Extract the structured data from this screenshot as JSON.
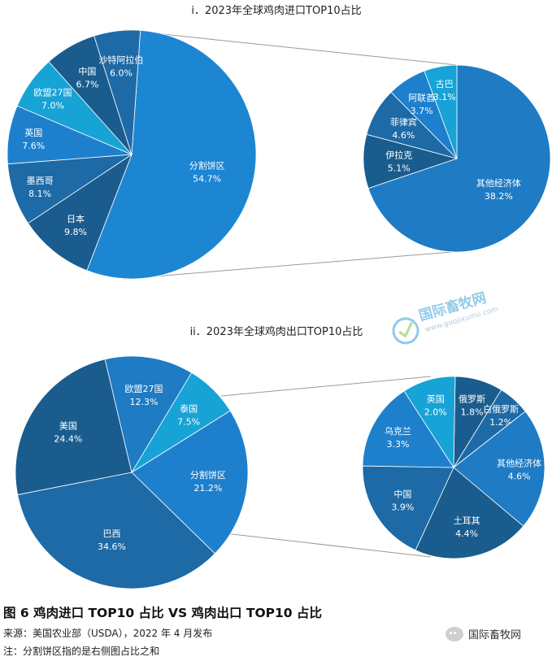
{
  "chart_data": [
    {
      "type": "pie",
      "title": "i．2023年全球鸡肉进口TOP10占比",
      "slices": [
        {
          "label": "分割饼区",
          "value": 54.7,
          "display": "54.7%",
          "color": "#1d86d2"
        },
        {
          "label": "日本",
          "value": 9.8,
          "display": "9.8%",
          "color": "#1a5c8d"
        },
        {
          "label": "墨西哥",
          "value": 8.1,
          "display": "8.1%",
          "color": "#1d6aa6"
        },
        {
          "label": "英国",
          "value": 7.6,
          "display": "7.6%",
          "color": "#1e80cd"
        },
        {
          "label": "欧盟27国",
          "value": 7.0,
          "display": "7.0%",
          "color": "#17a3d6"
        },
        {
          "label": "中国",
          "value": 6.7,
          "display": "6.7%",
          "color": "#1a5c8d"
        },
        {
          "label": "沙特阿拉伯",
          "value": 6.0,
          "display": "6.0%",
          "color": "#1d6aa6"
        }
      ],
      "breakdown": {
        "slices": [
          {
            "label": "其他经济体",
            "value": 38.2,
            "display": "38.2%",
            "color": "#1e7bc4"
          },
          {
            "label": "伊拉克",
            "value": 5.1,
            "display": "5.1%",
            "color": "#1a5c8d"
          },
          {
            "label": "菲律宾",
            "value": 4.6,
            "display": "4.6%",
            "color": "#1d6aa6"
          },
          {
            "label": "阿联酋",
            "value": 3.7,
            "display": "3.7%",
            "color": "#1e80cd"
          },
          {
            "label": "古巴",
            "value": 3.1,
            "display": "3.1%",
            "color": "#17a3d6"
          }
        ]
      }
    },
    {
      "type": "pie",
      "title": "ii．2023年全球鸡肉出口TOP10占比",
      "slices": [
        {
          "label": "泰国",
          "value": 7.5,
          "display": "7.5%",
          "color": "#17a3d6"
        },
        {
          "label": "分割饼区",
          "value": 21.2,
          "display": "21.2%",
          "color": "#1e80cd"
        },
        {
          "label": "巴西",
          "value": 34.6,
          "display": "34.6%",
          "color": "#1d6aa6"
        },
        {
          "label": "美国",
          "value": 24.4,
          "display": "24.4%",
          "color": "#1a5c8d"
        },
        {
          "label": "欧盟27国",
          "value": 12.3,
          "display": "12.3%",
          "color": "#1e7bc4"
        }
      ],
      "breakdown": {
        "slices": [
          {
            "label": "俄罗斯",
            "value": 1.8,
            "display": "1.8%",
            "color": "#1a5c8d"
          },
          {
            "label": "白俄罗斯",
            "value": 1.2,
            "display": "1.2%",
            "color": "#1d6aa6"
          },
          {
            "label": "其他经济体",
            "value": 4.6,
            "display": "4.6%",
            "color": "#1e7bc4"
          },
          {
            "label": "土耳其",
            "value": 4.4,
            "display": "4.4%",
            "color": "#1a5c8d"
          },
          {
            "label": "中国",
            "value": 3.9,
            "display": "3.9%",
            "color": "#1d6aa6"
          },
          {
            "label": "乌克兰",
            "value": 3.3,
            "display": "3.3%",
            "color": "#1e80cd"
          },
          {
            "label": "英国",
            "value": 2.0,
            "display": "2.0%",
            "color": "#17a3d6"
          }
        ]
      }
    }
  ],
  "figure": {
    "title": "图 6 鸡肉进口 TOP10 占比 VS 鸡肉出口 TOP10 占比",
    "source": "来源：美国农业部（USDA），2022 年 4 月发布",
    "note": "注：分割饼区指的是右侧图占比之和"
  },
  "watermark": {
    "name": "国际畜牧网",
    "url": "www.guojixumu.com"
  },
  "brand": {
    "name": "国际畜牧网"
  }
}
